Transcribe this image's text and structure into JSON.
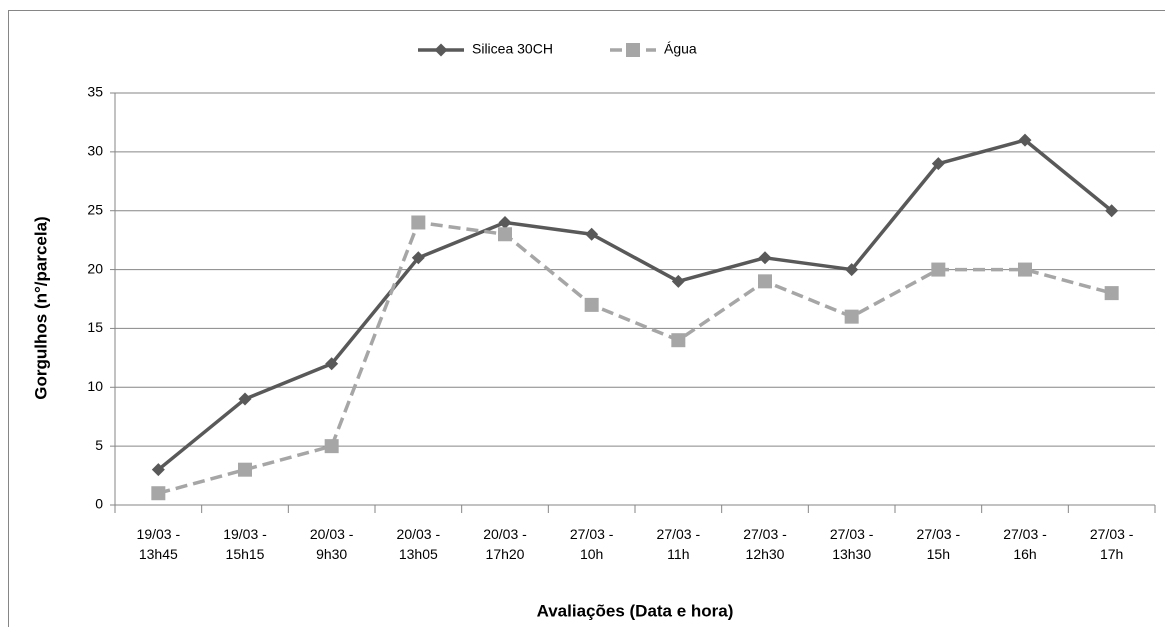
{
  "chart_data": {
    "type": "line",
    "x_label": "Avaliações (Data e hora)",
    "y_label": "Gorgulhos (n°/parcela)",
    "categories": [
      "19/03 -\n13h45",
      "19/03 -\n15h15",
      "20/03 -\n9h30",
      "20/03 -\n13h05",
      "20/03 -\n17h20",
      "27/03 -\n10h",
      "27/03 -\n11h",
      "27/03 -\n12h30",
      "27/03 -\n13h30",
      "27/03 -\n15h",
      "27/03 -\n16h",
      "27/03 -\n17h"
    ],
    "series": [
      {
        "name": "Silicea 30CH",
        "color": "#595959",
        "values": [
          3,
          9,
          12,
          21,
          24,
          23,
          19,
          21,
          20,
          29,
          31,
          25
        ]
      },
      {
        "name": "Água",
        "color": "#a6a6a6",
        "values": [
          1,
          3,
          5,
          24,
          23,
          17,
          14,
          19,
          16,
          20,
          20,
          18
        ]
      }
    ],
    "ylim": [
      0,
      35
    ],
    "yticks": [
      0,
      5,
      10,
      15,
      20,
      25,
      30,
      35
    ],
    "grid": true,
    "legend": "top"
  }
}
